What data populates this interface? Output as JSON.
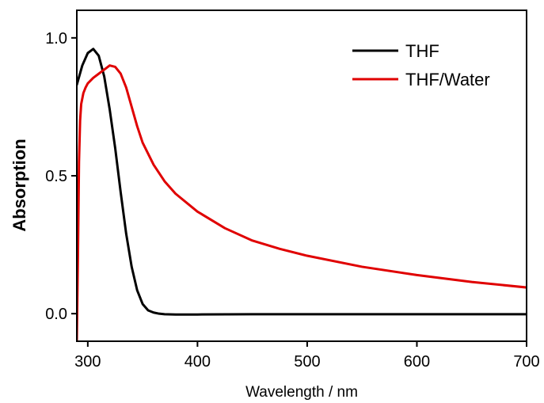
{
  "chart_data": {
    "type": "line",
    "title": "",
    "xlabel": "Wavelength / nm",
    "ylabel": "Absorption",
    "xlim": [
      290,
      700
    ],
    "ylim": [
      -0.1,
      1.1
    ],
    "x_ticks": [
      300,
      400,
      500,
      600,
      700
    ],
    "x_tick_labels": [
      "300",
      "400",
      "500",
      "600",
      "700"
    ],
    "y_ticks": [
      0.0,
      0.5,
      1.0
    ],
    "y_tick_labels": [
      "0.0",
      "0.5",
      "1.0"
    ],
    "grid": false,
    "legend_position": "top-right",
    "series": [
      {
        "name": "THF",
        "color": "#000000",
        "x": [
          290,
          295,
          300,
          305,
          310,
          315,
          320,
          325,
          330,
          335,
          340,
          345,
          350,
          355,
          360,
          365,
          370,
          380,
          400,
          450,
          500,
          600,
          700
        ],
        "y": [
          0.83,
          0.9,
          0.945,
          0.96,
          0.935,
          0.86,
          0.74,
          0.6,
          0.44,
          0.29,
          0.17,
          0.085,
          0.035,
          0.012,
          0.004,
          0.0,
          -0.002,
          -0.003,
          -0.003,
          -0.002,
          -0.002,
          -0.002,
          -0.002
        ]
      },
      {
        "name": "THF/Water",
        "color": "#e00000",
        "x": [
          290,
          291,
          292,
          293,
          294,
          296,
          298,
          300,
          305,
          310,
          315,
          320,
          325,
          330,
          335,
          340,
          345,
          350,
          360,
          370,
          380,
          400,
          425,
          450,
          475,
          500,
          550,
          600,
          650,
          700
        ],
        "y": [
          -0.1,
          0.2,
          0.55,
          0.7,
          0.76,
          0.8,
          0.82,
          0.835,
          0.855,
          0.87,
          0.885,
          0.9,
          0.895,
          0.87,
          0.82,
          0.75,
          0.68,
          0.62,
          0.54,
          0.48,
          0.435,
          0.37,
          0.31,
          0.265,
          0.235,
          0.21,
          0.17,
          0.14,
          0.115,
          0.095
        ]
      }
    ]
  }
}
